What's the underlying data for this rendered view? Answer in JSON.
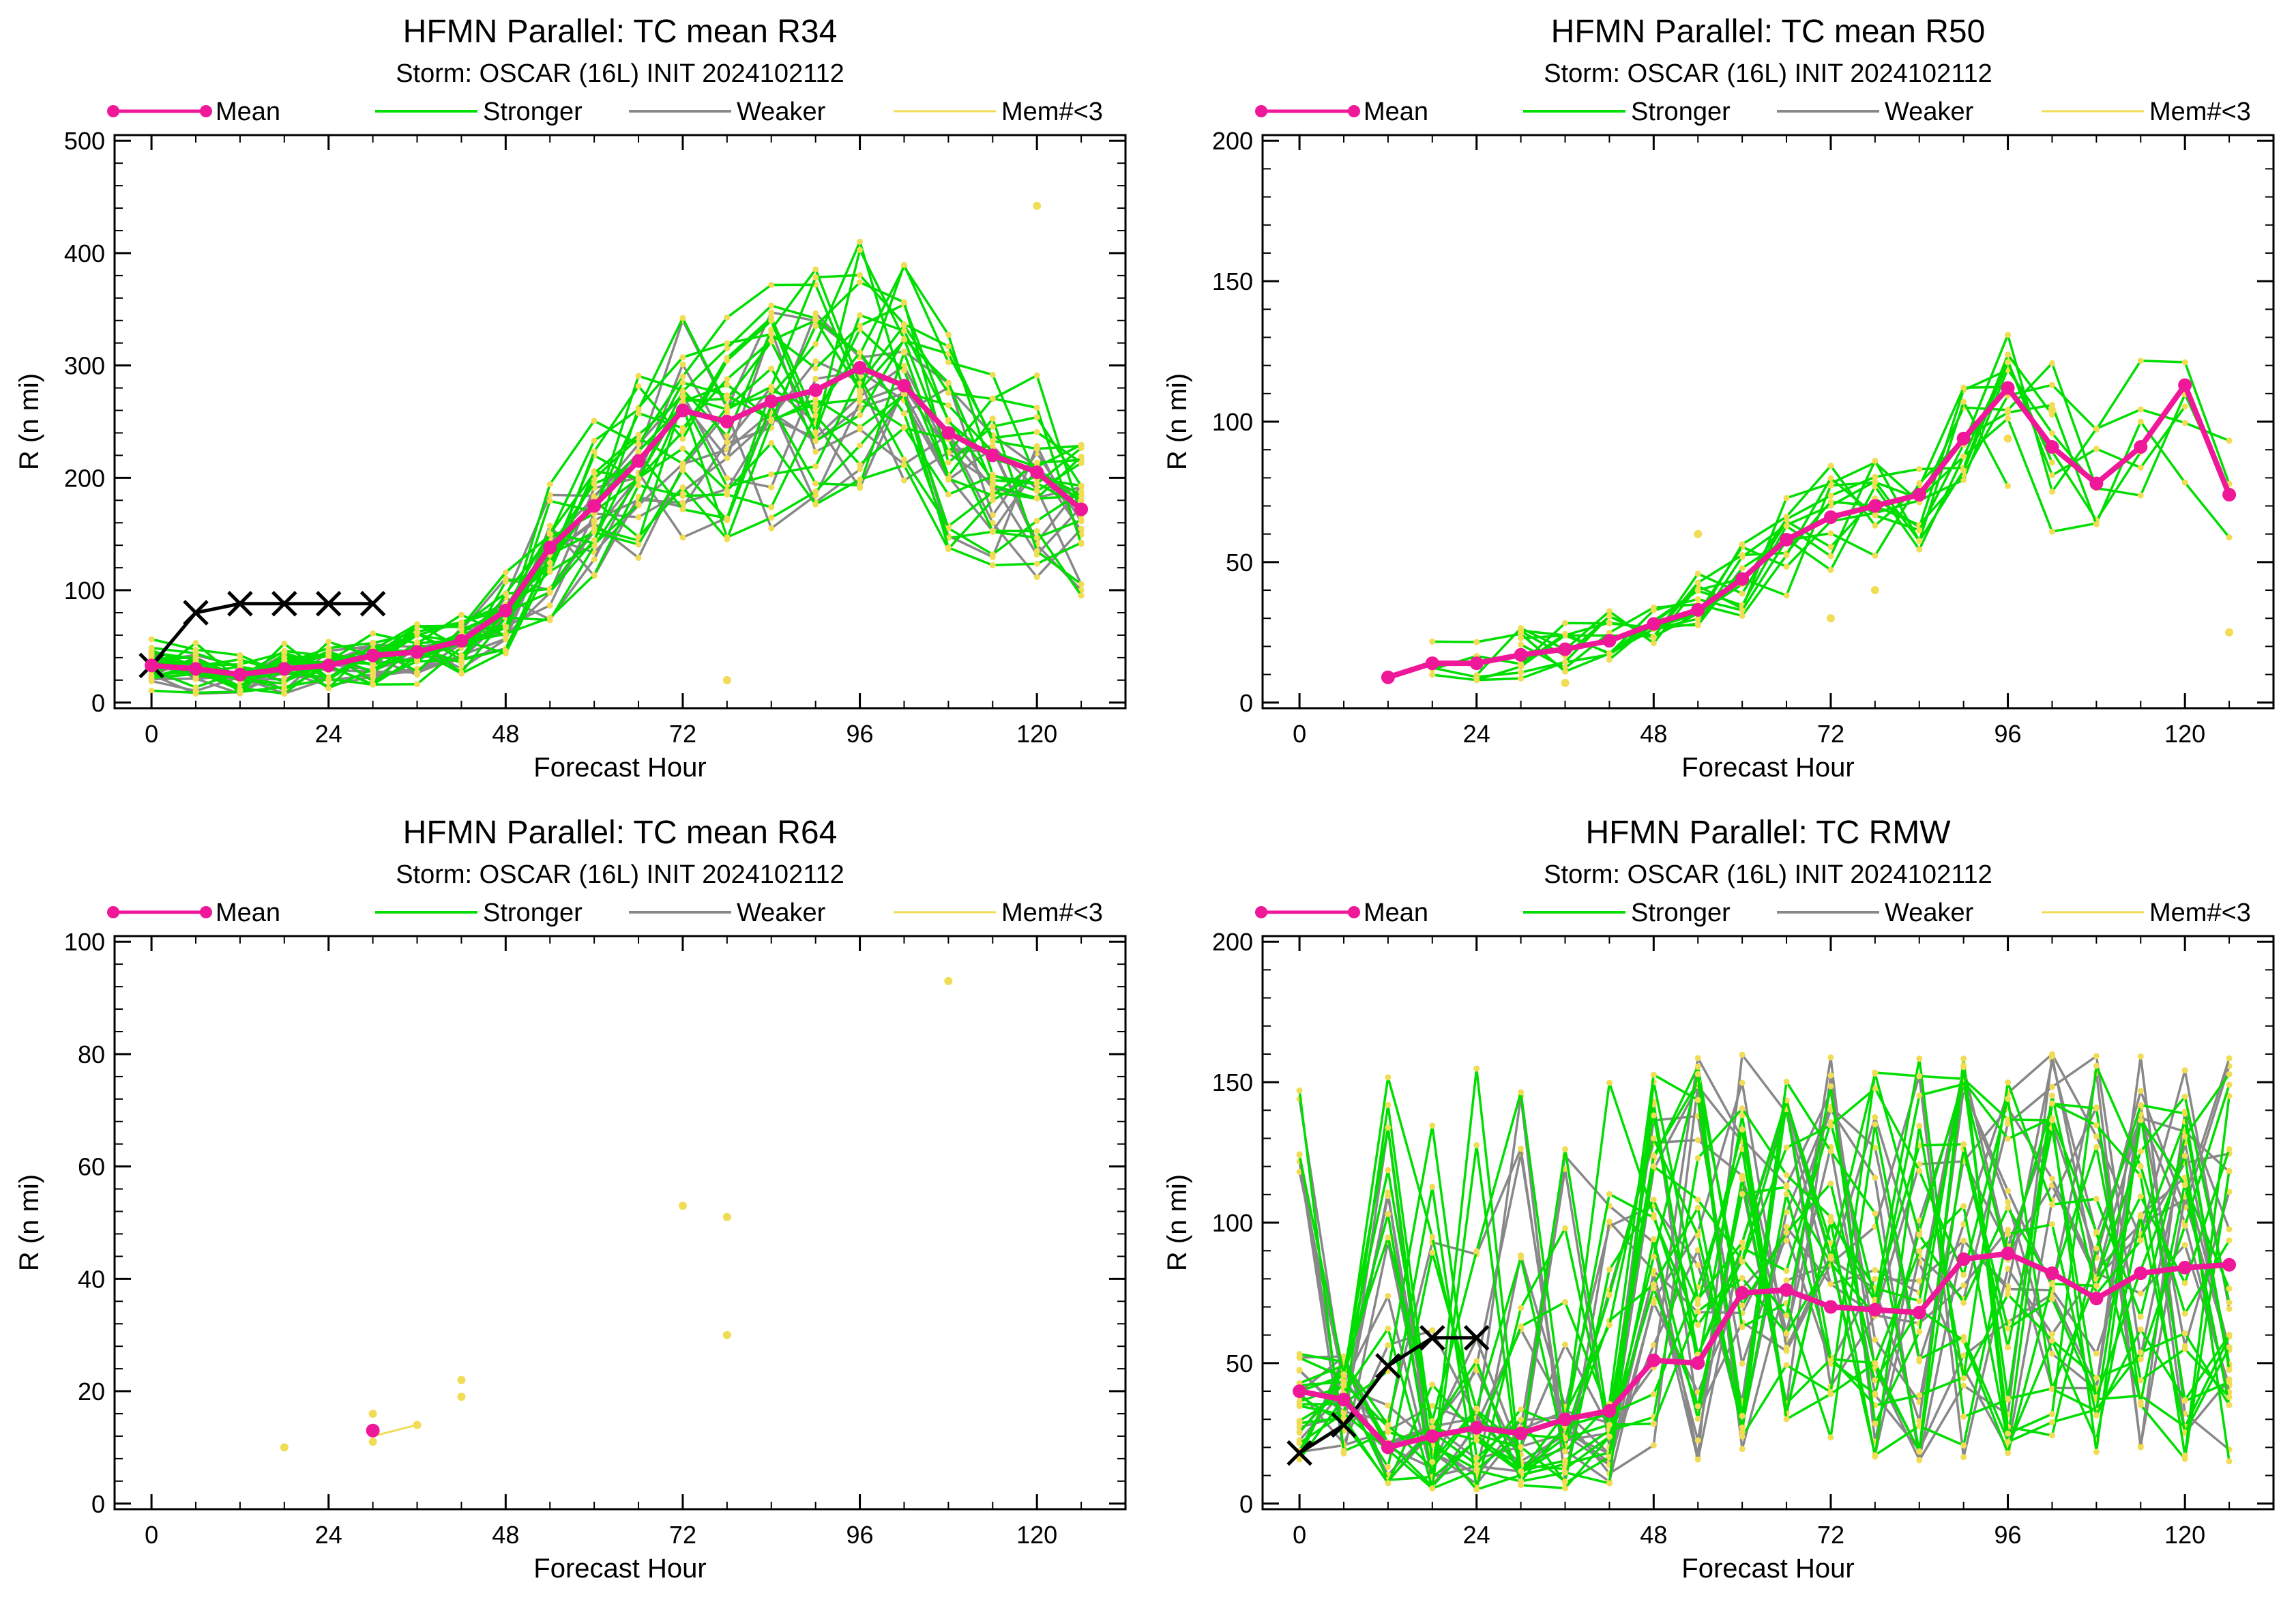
{
  "colors": {
    "mean": "#ee1899",
    "stronger": "#00dd00",
    "weaker": "#888888",
    "few_members": "#f1dd55",
    "observed": "#000000"
  },
  "legend": {
    "mean": "Mean",
    "stronger": "Stronger",
    "weaker": "Weaker",
    "few": "Mem#<3"
  },
  "chart_data": [
    {
      "type": "line",
      "title": "HFMN Parallel: TC mean R34",
      "subtitle": "Storm: OSCAR (16L) INIT 2024102112",
      "xlabel": "Forecast Hour",
      "ylabel": "R (n mi)",
      "xlim": [
        -5,
        132
      ],
      "ylim": [
        -5,
        505
      ],
      "xticks": [
        0,
        24,
        48,
        72,
        96,
        120
      ],
      "yticks": [
        0,
        100,
        200,
        300,
        400,
        500
      ],
      "series": [
        {
          "name": "Mean",
          "x": [
            0,
            6,
            12,
            18,
            24,
            30,
            36,
            42,
            48,
            54,
            60,
            66,
            72,
            78,
            84,
            90,
            96,
            102,
            108,
            114,
            120,
            126
          ],
          "y": [
            33,
            30,
            25,
            30,
            33,
            42,
            45,
            55,
            82,
            138,
            175,
            215,
            260,
            250,
            268,
            278,
            298,
            282,
            240,
            220,
            205,
            172
          ]
        },
        {
          "name": "",
          "x": [
            0,
            6,
            12,
            18,
            24,
            30
          ],
          "y": [
            33,
            80,
            88,
            88,
            88,
            88
          ]
        }
      ],
      "stronger_count": 20,
      "weaker_count": 10,
      "few_member_points": [
        [
          120,
          442
        ],
        [
          78,
          20
        ]
      ]
    },
    {
      "type": "line",
      "title": "HFMN Parallel: TC mean R50",
      "subtitle": "Storm: OSCAR (16L) INIT 2024102112",
      "xlabel": "Forecast Hour",
      "ylabel": "R (n mi)",
      "xlim": [
        -5,
        132
      ],
      "ylim": [
        -2,
        202
      ],
      "xticks": [
        0,
        24,
        48,
        72,
        96,
        120
      ],
      "yticks": [
        0,
        50,
        100,
        150,
        200
      ],
      "series": [
        {
          "name": "Mean",
          "x": [
            12,
            18,
            24,
            30,
            36,
            42,
            48,
            54,
            60,
            66,
            72,
            78,
            84,
            90,
            96,
            102,
            108,
            114,
            120,
            126
          ],
          "y": [
            9,
            14,
            14,
            17,
            19,
            22,
            28,
            33,
            44,
            58,
            66,
            70,
            74,
            94,
            112,
            91,
            78,
            91,
            113,
            74
          ]
        }
      ],
      "stronger_count": 12,
      "weaker_count": 0,
      "few_member_points": [
        [
          36,
          7
        ],
        [
          54,
          60
        ],
        [
          96,
          94
        ],
        [
          102,
          104
        ],
        [
          126,
          25
        ],
        [
          72,
          30
        ],
        [
          78,
          40
        ]
      ]
    },
    {
      "type": "scatter",
      "title": "HFMN Parallel: TC mean R64",
      "subtitle": "Storm: OSCAR (16L) INIT 2024102112",
      "xlabel": "Forecast Hour",
      "ylabel": "R (n mi)",
      "xlim": [
        -5,
        132
      ],
      "ylim": [
        -1,
        101
      ],
      "xticks": [
        0,
        24,
        48,
        72,
        96,
        120
      ],
      "yticks": [
        0,
        20,
        40,
        60,
        80,
        100
      ],
      "series": [
        {
          "name": "Mean",
          "x": [
            30
          ],
          "y": [
            13
          ]
        }
      ],
      "few_member_points": [
        [
          18,
          10
        ],
        [
          30,
          16
        ],
        [
          30,
          11
        ],
        [
          36,
          14
        ],
        [
          42,
          22
        ],
        [
          42,
          19
        ],
        [
          72,
          53
        ],
        [
          78,
          51
        ],
        [
          78,
          30
        ],
        [
          108,
          93
        ]
      ],
      "few_member_lines": [
        [
          [
            30,
            12
          ],
          [
            36,
            14
          ]
        ]
      ]
    },
    {
      "type": "line",
      "title": "HFMN Parallel: TC RMW",
      "subtitle": "Storm: OSCAR (16L) INIT 2024102112",
      "xlabel": "Forecast Hour",
      "ylabel": "R (n mi)",
      "xlim": [
        -5,
        132
      ],
      "ylim": [
        -2,
        202
      ],
      "xticks": [
        0,
        24,
        48,
        72,
        96,
        120
      ],
      "yticks": [
        0,
        50,
        100,
        150,
        200
      ],
      "series": [
        {
          "name": "Mean",
          "x": [
            0,
            6,
            12,
            18,
            24,
            30,
            36,
            42,
            48,
            54,
            60,
            66,
            72,
            78,
            84,
            90,
            96,
            102,
            108,
            114,
            120,
            126
          ],
          "y": [
            40,
            37,
            20,
            24,
            27,
            25,
            30,
            33,
            51,
            50,
            75,
            76,
            70,
            69,
            68,
            87,
            89,
            82,
            73,
            82,
            84,
            85
          ]
        },
        {
          "name": "",
          "x": [
            0,
            6,
            12,
            18,
            24
          ],
          "y": [
            18,
            28,
            49,
            59,
            59
          ]
        }
      ],
      "stronger_count": 18,
      "weaker_count": 14
    }
  ]
}
